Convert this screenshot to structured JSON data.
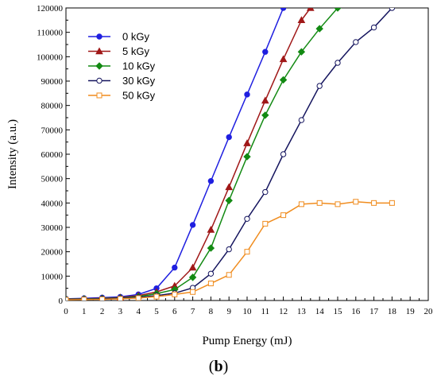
{
  "chart_data": {
    "type": "line",
    "xlabel": "Pump Energy (mJ)",
    "ylabel": "Intensity (a.u.)",
    "xlim": [
      0,
      20
    ],
    "ylim": [
      0,
      120000
    ],
    "x_ticks": [
      "0",
      "1",
      "2",
      "3",
      "4",
      "5",
      "6",
      "7",
      "8",
      "9",
      "10",
      "11",
      "12",
      "13",
      "14",
      "15",
      "16",
      "17",
      "18",
      "19",
      "20"
    ],
    "y_ticks": [
      "0",
      "10000",
      "20000",
      "30000",
      "40000",
      "50000",
      "60000",
      "70000",
      "80000",
      "90000",
      "100000",
      "110000",
      "120000"
    ],
    "grid": false,
    "legend_position": "top-left",
    "panel_label": {
      "open": "(",
      "letter": "b",
      "close": ")"
    },
    "series": [
      {
        "name": "0 kGy",
        "color": "#1f1fe0",
        "marker": "circle-filled",
        "x": [
          0,
          1,
          2,
          3,
          4,
          5,
          6,
          7,
          8,
          9,
          10,
          11,
          12
        ],
        "y": [
          700,
          900,
          1200,
          1500,
          2500,
          5000,
          13500,
          31000,
          49000,
          67000,
          84500,
          102000,
          120000
        ]
      },
      {
        "name": "5 kGy",
        "color": "#a01818",
        "marker": "triangle-filled",
        "x": [
          0,
          1,
          2,
          3,
          4,
          5,
          6,
          7,
          8,
          9,
          10,
          11,
          12,
          13,
          13.5
        ],
        "y": [
          600,
          700,
          900,
          1200,
          2000,
          3500,
          6000,
          13500,
          29000,
          46500,
          64500,
          82000,
          99000,
          115000,
          120000
        ]
      },
      {
        "name": "10 kGy",
        "color": "#138a13",
        "marker": "diamond-filled",
        "x": [
          0,
          1,
          2,
          3,
          4,
          5,
          6,
          7,
          8,
          9,
          10,
          11,
          12,
          13,
          14,
          15
        ],
        "y": [
          500,
          600,
          800,
          1000,
          1600,
          2800,
          4500,
          9500,
          21500,
          41000,
          59000,
          76000,
          90500,
          102000,
          111500,
          120000
        ]
      },
      {
        "name": "30 kGy",
        "color": "#14145e",
        "marker": "circle-open",
        "x": [
          0,
          1,
          2,
          3,
          4,
          5,
          6,
          7,
          8,
          9,
          10,
          11,
          12,
          13,
          14,
          15,
          16,
          17,
          18
        ],
        "y": [
          400,
          500,
          700,
          900,
          1300,
          2000,
          3000,
          5200,
          11000,
          21000,
          33500,
          44500,
          60000,
          74000,
          88000,
          97500,
          106000,
          112000,
          120000
        ]
      },
      {
        "name": "50 kGy",
        "color": "#f08c1e",
        "marker": "square-open",
        "x": [
          0,
          1,
          2,
          3,
          4,
          5,
          6,
          7,
          8,
          9,
          10,
          11,
          12,
          13,
          14,
          15,
          16,
          17,
          18
        ],
        "y": [
          300,
          400,
          500,
          700,
          1000,
          1600,
          2500,
          3500,
          7000,
          10500,
          20000,
          31500,
          35000,
          39500,
          40000,
          39500,
          40500,
          40000,
          40000
        ]
      }
    ]
  }
}
